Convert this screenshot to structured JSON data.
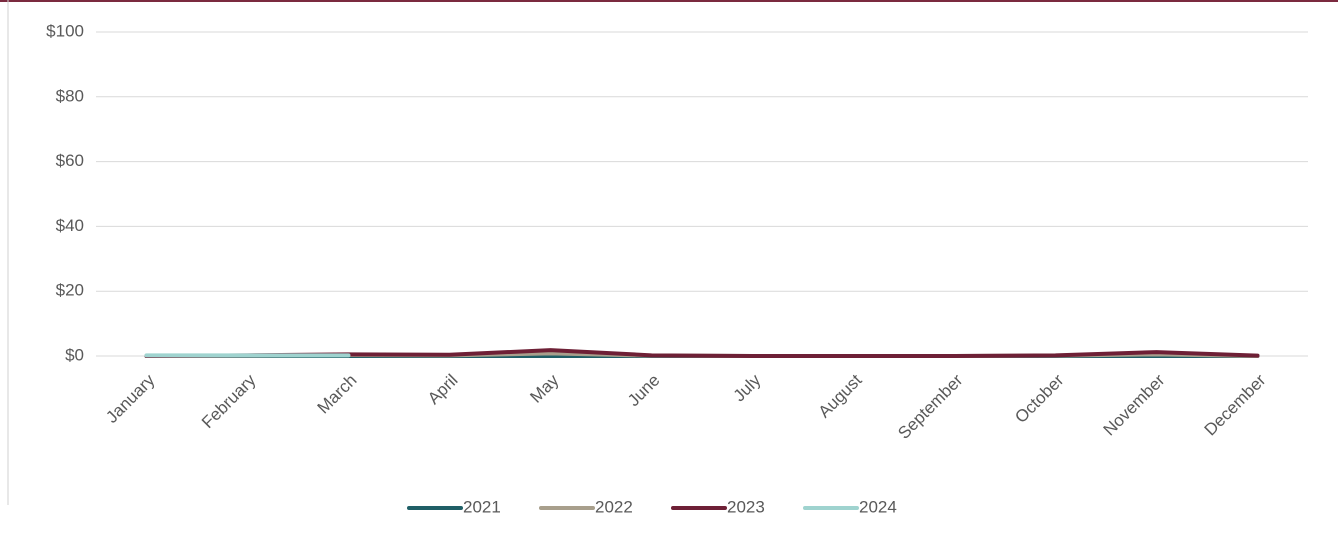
{
  "chart_data": {
    "type": "line",
    "categories": [
      "January",
      "February",
      "March",
      "April",
      "May",
      "June",
      "July",
      "August",
      "September",
      "October",
      "November",
      "December"
    ],
    "series": [
      {
        "name": "2021",
        "color": "#1f5f66",
        "values": [
          0,
          0,
          0,
          0,
          0,
          0,
          0,
          0,
          0,
          0,
          0,
          0
        ]
      },
      {
        "name": "2022",
        "color": "#a89f8c",
        "values": [
          0,
          0.1,
          0.3,
          0.2,
          0.8,
          0.1,
          0,
          0,
          0,
          0.1,
          0.5,
          0
        ]
      },
      {
        "name": "2023",
        "color": "#6e2036",
        "values": [
          0,
          0.2,
          0.5,
          0.4,
          1.8,
          0.2,
          0,
          0,
          0,
          0.2,
          1.2,
          0.1
        ]
      },
      {
        "name": "2024",
        "color": "#9fd3cf",
        "values": [
          0.2,
          0.2,
          0.2,
          null,
          null,
          null,
          null,
          null,
          null,
          null,
          null,
          null
        ]
      }
    ],
    "ylim": [
      0,
      100
    ],
    "yticks": [
      {
        "value": 0,
        "label": "$0"
      },
      {
        "value": 20,
        "label": "$20"
      },
      {
        "value": 40,
        "label": "$40"
      },
      {
        "value": 60,
        "label": "$60"
      },
      {
        "value": 80,
        "label": "$80"
      },
      {
        "value": 100,
        "label": "$100"
      }
    ],
    "grid": true,
    "legend": "bottom"
  }
}
